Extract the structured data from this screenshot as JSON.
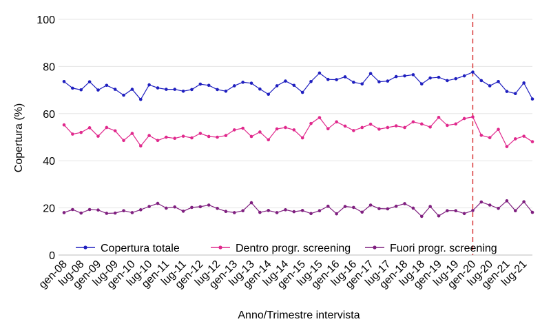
{
  "chart_data": {
    "type": "line",
    "xlabel": "Anno/Trimestre intervista",
    "ylabel": "Copertura (%)",
    "ylim": [
      0,
      100
    ],
    "yticks": [
      0,
      20,
      40,
      60,
      80,
      100
    ],
    "grid": "horizontal",
    "legend_position": "bottom",
    "x": [
      "gen-08",
      "apr-08",
      "lug-08",
      "ott-08",
      "gen-09",
      "apr-09",
      "lug-09",
      "ott-09",
      "gen-10",
      "apr-10",
      "lug-10",
      "ott-10",
      "gen-11",
      "apr-11",
      "lug-11",
      "ott-11",
      "gen-12",
      "apr-12",
      "lug-12",
      "ott-12",
      "gen-13",
      "apr-13",
      "lug-13",
      "ott-13",
      "gen-14",
      "apr-14",
      "lug-14",
      "ott-14",
      "gen-15",
      "apr-15",
      "lug-15",
      "ott-15",
      "gen-16",
      "apr-16",
      "lug-16",
      "ott-16",
      "gen-17",
      "apr-17",
      "lug-17",
      "ott-17",
      "gen-18",
      "apr-18",
      "lug-18",
      "ott-18",
      "gen-19",
      "apr-19",
      "lug-19",
      "ott-19",
      "gen-20",
      "apr-20",
      "lug-20",
      "ott-20",
      "gen-21",
      "apr-21",
      "lug-21",
      "ott-21"
    ],
    "x_tick_labels": [
      "gen-08",
      "lug-08",
      "gen-09",
      "lug-09",
      "gen-10",
      "lug-10",
      "gen-11",
      "lug-11",
      "gen-12",
      "lug-12",
      "gen-13",
      "lug-13",
      "gen-14",
      "lug-14",
      "gen-15",
      "lug-15",
      "gen-16",
      "lug-16",
      "gen-17",
      "lug-17",
      "gen-18",
      "lug-18",
      "gen-19",
      "lug-19",
      "gen-20",
      "lug-20",
      "gen-21",
      "lug-21"
    ],
    "reference_line": {
      "x": "gen-20",
      "color": "#d62728",
      "style": "dashed"
    },
    "series": [
      {
        "name": "Copertura totale",
        "color": "#1f1fbf",
        "values": [
          73.6,
          70.8,
          70.1,
          73.5,
          70.0,
          72.0,
          70.3,
          67.8,
          70.3,
          66.0,
          72.2,
          70.9,
          70.3,
          70.3,
          69.5,
          70.2,
          72.5,
          72.0,
          70.2,
          69.5,
          71.8,
          73.3,
          72.9,
          70.4,
          68.2,
          71.8,
          73.8,
          72.0,
          69.0,
          73.6,
          77.2,
          74.5,
          74.4,
          75.6,
          73.3,
          72.6,
          77.0,
          73.5,
          73.8,
          75.7,
          76.0,
          76.5,
          72.6,
          75.1,
          75.4,
          74.0,
          74.8,
          76.0,
          77.6,
          74.0,
          71.8,
          73.6,
          69.4,
          68.5,
          73.0,
          66.2
        ]
      },
      {
        "name": "Dentro progr. screening",
        "color": "#e0288c",
        "values": [
          55.2,
          51.3,
          52.0,
          54.0,
          50.4,
          54.1,
          52.7,
          48.6,
          51.6,
          46.3,
          50.7,
          48.6,
          50.0,
          49.5,
          50.4,
          49.7,
          51.6,
          50.3,
          50.0,
          50.7,
          53.1,
          53.8,
          50.3,
          52.2,
          48.9,
          53.5,
          54.1,
          53.1,
          49.7,
          55.8,
          58.3,
          53.6,
          56.5,
          54.7,
          52.8,
          54.1,
          55.5,
          53.4,
          54.1,
          54.8,
          54.1,
          56.5,
          55.6,
          54.3,
          58.4,
          55.0,
          55.6,
          57.9,
          58.6,
          50.8,
          49.8,
          53.3,
          46.0,
          49.3,
          50.4,
          48.1
        ]
      },
      {
        "name": "Fuori progr. screening",
        "color": "#7f1f7f",
        "values": [
          18.0,
          19.3,
          17.8,
          19.3,
          19.1,
          17.7,
          17.8,
          18.8,
          18.0,
          19.2,
          20.6,
          21.9,
          19.9,
          20.4,
          18.6,
          20.2,
          20.5,
          21.2,
          19.8,
          18.5,
          18.0,
          18.8,
          22.2,
          18.1,
          18.9,
          18.0,
          19.2,
          18.4,
          18.9,
          17.6,
          18.8,
          20.7,
          17.5,
          20.6,
          20.2,
          18.2,
          21.2,
          19.7,
          19.6,
          20.7,
          21.8,
          19.9,
          16.4,
          20.6,
          16.6,
          18.8,
          18.8,
          17.6,
          18.9,
          22.5,
          21.2,
          19.8,
          23.0,
          18.8,
          22.6,
          18.1
        ]
      }
    ]
  }
}
